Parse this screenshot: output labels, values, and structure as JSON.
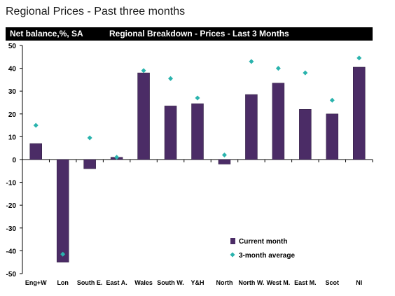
{
  "page": {
    "title": "Regional Prices - Past three months"
  },
  "header": {
    "left_label": "Net balance,%, SA",
    "center_title": "Regional Breakdown - Prices - Last 3 Months"
  },
  "colors": {
    "bar": "#4b2c66",
    "marker": "#2ab3ad",
    "header_bg": "#000000",
    "header_text": "#ffffff"
  },
  "chart_data": {
    "type": "bar",
    "title": "Regional Breakdown - Prices - Last 3 Months",
    "ylabel": "Net balance,%, SA",
    "xlabel": "",
    "ylim": [
      -50,
      50
    ],
    "yticks": [
      50,
      40,
      30,
      20,
      10,
      0,
      -10,
      -20,
      -30,
      -40,
      -50
    ],
    "grid": false,
    "legend_position": "bottom-right",
    "categories": [
      "Eng+W",
      "Lon",
      "South E.",
      "East A.",
      "Wales",
      "South W.",
      "Y&H",
      "North",
      "North W.",
      "West M.",
      "East M.",
      "Scot",
      "NI"
    ],
    "series": [
      {
        "name": "Current month",
        "kind": "bar",
        "values": [
          7,
          -45,
          -4,
          1,
          38,
          23.5,
          24.5,
          -2,
          28.5,
          33.5,
          22,
          20,
          40.5
        ]
      },
      {
        "name": "3-month average",
        "kind": "marker",
        "values": [
          15,
          -41.5,
          9.5,
          1,
          39,
          35.5,
          27,
          2,
          43,
          40,
          38,
          26,
          44.5
        ]
      }
    ]
  }
}
